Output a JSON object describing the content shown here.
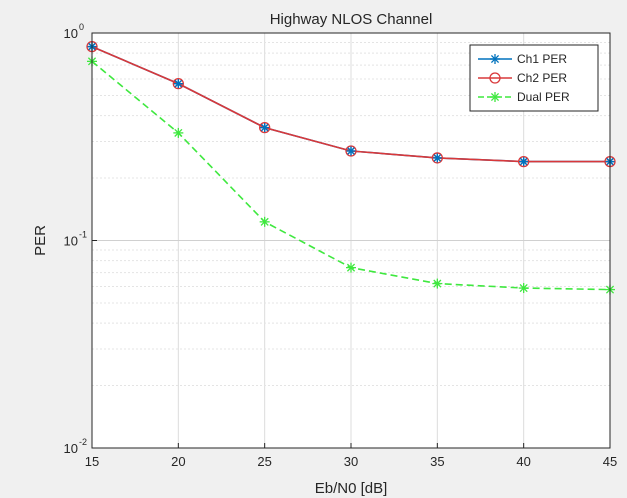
{
  "chart_data": {
    "type": "line",
    "title": "Highway NLOS Channel",
    "xlabel": "Eb/N0 [dB]",
    "ylabel": "PER",
    "x": [
      15,
      20,
      25,
      30,
      35,
      40,
      45
    ],
    "xlim": [
      15,
      45
    ],
    "x_ticks": [
      "15",
      "20",
      "25",
      "30",
      "35",
      "40",
      "45"
    ],
    "y_scale": "log",
    "ylim": [
      0.01,
      1
    ],
    "y_ticks": [
      {
        "base": "10",
        "exp": "-2",
        "value": 0.01
      },
      {
        "base": "10",
        "exp": "-1",
        "value": 0.1
      },
      {
        "base": "10",
        "exp": "0",
        "value": 1
      }
    ],
    "grid": true,
    "legend_position": "top-right",
    "series": [
      {
        "name": "Ch1 PER",
        "values": [
          0.86,
          0.57,
          0.35,
          0.27,
          0.25,
          0.24,
          0.24
        ],
        "color": "#0072bd",
        "marker": "asterisk",
        "line": "solid"
      },
      {
        "name": "Ch2 PER",
        "values": [
          0.86,
          0.57,
          0.35,
          0.27,
          0.25,
          0.24,
          0.24
        ],
        "color": "#d9383a",
        "marker": "circle",
        "line": "solid"
      },
      {
        "name": "Dual PER",
        "values": [
          0.73,
          0.33,
          0.123,
          0.074,
          0.062,
          0.059,
          0.058
        ],
        "color": "#3fe83f",
        "marker": "asterisk",
        "line": "dashed"
      }
    ]
  }
}
